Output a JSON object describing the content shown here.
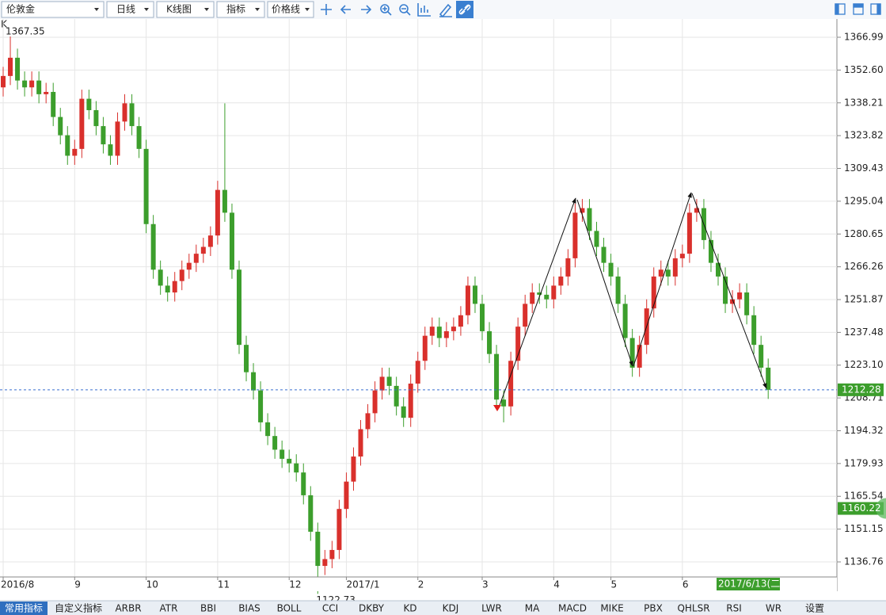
{
  "toolbar": {
    "instrument": "伦敦金",
    "period": "日线",
    "chart_kind": "K线图",
    "indicator": "指标",
    "price_line": "价格线"
  },
  "chart_data": {
    "type": "candlestick",
    "label": "K",
    "categories": [
      "2016/8",
      null,
      null,
      null,
      null,
      null,
      null,
      null,
      null,
      null,
      "9",
      null,
      null,
      null,
      null,
      null,
      null,
      null,
      null,
      null,
      "10",
      null,
      null,
      null,
      null,
      null,
      null,
      null,
      null,
      null,
      "11",
      null,
      null,
      null,
      null,
      null,
      null,
      null,
      null,
      null,
      "12",
      null,
      null,
      null,
      null,
      null,
      null,
      null,
      "2017/1",
      null,
      null,
      null,
      null,
      null,
      null,
      null,
      null,
      null,
      "2",
      null,
      null,
      null,
      null,
      null,
      null,
      null,
      null,
      "3",
      null,
      null,
      null,
      null,
      null,
      null,
      null,
      null,
      null,
      "4",
      null,
      null,
      null,
      null,
      null,
      null,
      null,
      "5",
      null,
      null,
      null,
      null,
      null,
      null,
      null,
      null,
      null,
      "6",
      null,
      null,
      null,
      null,
      null,
      null,
      null,
      null,
      null,
      null,
      null,
      null
    ],
    "open": [
      1345,
      1350,
      1358,
      1348,
      1345,
      1348,
      1342,
      1343,
      1332,
      1324,
      1315,
      1318,
      1340,
      1335,
      1328,
      1320,
      1315,
      1330,
      1338,
      1328,
      1318,
      1285,
      1265,
      1258,
      1255,
      1260,
      1265,
      1268,
      1272,
      1275,
      1280,
      1300,
      1290,
      1265,
      1232,
      1220,
      1212,
      1198,
      1192,
      1186,
      1182,
      1180,
      1176,
      1166,
      1150,
      1135,
      1138,
      1142,
      1160,
      1172,
      1183,
      1195,
      1202,
      1212,
      1218,
      1214,
      1205,
      1200,
      1215,
      1225,
      1236,
      1240,
      1235,
      1238,
      1240,
      1245,
      1258,
      1250,
      1238,
      1228,
      1208,
      1205,
      1225,
      1240,
      1250,
      1255,
      1254,
      1252,
      1258,
      1262,
      1270,
      1290,
      1292,
      1282,
      1275,
      1268,
      1262,
      1250,
      1235,
      1222,
      1232,
      1248,
      1262,
      1265,
      1262,
      1270,
      1272,
      1290,
      1292,
      1278,
      1268,
      1262,
      1250,
      1252,
      1255,
      1245,
      1232,
      1222
    ],
    "high": [
      1354,
      1367.35,
      1362,
      1352,
      1352,
      1352,
      1347,
      1347,
      1336,
      1328,
      1322,
      1344,
      1344,
      1339,
      1332,
      1324,
      1334,
      1342,
      1342,
      1332,
      1322,
      1289,
      1269,
      1262,
      1264,
      1269,
      1272,
      1276,
      1279,
      1284,
      1304,
      1338,
      1294,
      1269,
      1236,
      1224,
      1216,
      1202,
      1196,
      1190,
      1186,
      1184,
      1180,
      1170,
      1154,
      1142,
      1146,
      1164,
      1176,
      1187,
      1199,
      1206,
      1216,
      1222,
      1222,
      1218,
      1209,
      1219,
      1229,
      1240,
      1244,
      1244,
      1242,
      1244,
      1249,
      1262,
      1262,
      1254,
      1242,
      1232,
      1212,
      1229,
      1244,
      1254,
      1259,
      1259,
      1258,
      1262,
      1266,
      1274,
      1294,
      1296,
      1296,
      1286,
      1279,
      1272,
      1266,
      1254,
      1239,
      1236,
      1252,
      1266,
      1269,
      1269,
      1274,
      1276,
      1294,
      1296,
      1296,
      1282,
      1272,
      1266,
      1256,
      1259,
      1259,
      1249,
      1236,
      1226
    ],
    "low": [
      1341,
      1346,
      1344,
      1341,
      1341,
      1338,
      1338,
      1328,
      1320,
      1311,
      1311,
      1314,
      1331,
      1324,
      1316,
      1311,
      1311,
      1326,
      1324,
      1314,
      1281,
      1261,
      1254,
      1251,
      1251,
      1256,
      1261,
      1264,
      1268,
      1271,
      1276,
      1286,
      1261,
      1228,
      1216,
      1208,
      1194,
      1188,
      1182,
      1178,
      1176,
      1172,
      1162,
      1146,
      1122.73,
      1131,
      1134,
      1138,
      1156,
      1168,
      1179,
      1191,
      1198,
      1208,
      1210,
      1201,
      1196,
      1196,
      1211,
      1221,
      1232,
      1231,
      1231,
      1234,
      1236,
      1241,
      1246,
      1234,
      1224,
      1204,
      1198,
      1201,
      1221,
      1236,
      1246,
      1250,
      1248,
      1248,
      1254,
      1258,
      1266,
      1286,
      1278,
      1271,
      1264,
      1258,
      1246,
      1231,
      1218,
      1218,
      1228,
      1244,
      1258,
      1258,
      1258,
      1266,
      1268,
      1286,
      1274,
      1264,
      1258,
      1246,
      1246,
      1248,
      1241,
      1228,
      1218,
      1208.28
    ],
    "close": [
      1350,
      1358,
      1348,
      1345,
      1348,
      1342,
      1343,
      1332,
      1324,
      1315,
      1318,
      1340,
      1335,
      1328,
      1320,
      1315,
      1330,
      1338,
      1328,
      1318,
      1285,
      1265,
      1258,
      1255,
      1260,
      1265,
      1268,
      1272,
      1275,
      1280,
      1300,
      1290,
      1265,
      1232,
      1220,
      1212,
      1198,
      1192,
      1186,
      1182,
      1180,
      1176,
      1166,
      1150,
      1135,
      1138,
      1142,
      1160,
      1172,
      1183,
      1195,
      1202,
      1212,
      1218,
      1214,
      1205,
      1200,
      1215,
      1225,
      1236,
      1240,
      1235,
      1238,
      1240,
      1245,
      1258,
      1250,
      1238,
      1228,
      1208,
      1205,
      1225,
      1240,
      1250,
      1255,
      1254,
      1252,
      1258,
      1262,
      1270,
      1290,
      1292,
      1282,
      1275,
      1268,
      1262,
      1250,
      1235,
      1222,
      1232,
      1248,
      1262,
      1265,
      1262,
      1270,
      1272,
      1290,
      1292,
      1278,
      1268,
      1262,
      1250,
      1252,
      1255,
      1245,
      1232,
      1222,
      1212.28
    ],
    "up_color": "#d9302c",
    "down_color": "#3c9e2c",
    "ylim": [
      1130.15,
      1373.6
    ],
    "yticks": [
      1366.99,
      {
        "value": 1352.6,
        "label": "1352.60"
      },
      1338.21,
      1323.82,
      1309.43,
      1295.04,
      1280.65,
      1266.26,
      1251.87,
      1237.48,
      {
        "value": 1223.1,
        "label": "1223.10"
      },
      1208.71,
      1194.32,
      1179.93,
      1165.54,
      1151.15,
      1136.76
    ],
    "grid": true,
    "marker_price": 1160.22,
    "cursor_label": "2017/6/13(二)"
  },
  "tabs": [
    "常用指标",
    "自定义指标",
    "ARBR",
    "ATR",
    "BBI",
    "BIAS",
    "BOLL",
    "CCI",
    "DKBY",
    "KD",
    "KDJ",
    "LWR",
    "MA",
    "MACD",
    "MIKE",
    "PBX",
    "QHLSR",
    "RSI",
    "WR",
    "设置"
  ]
}
